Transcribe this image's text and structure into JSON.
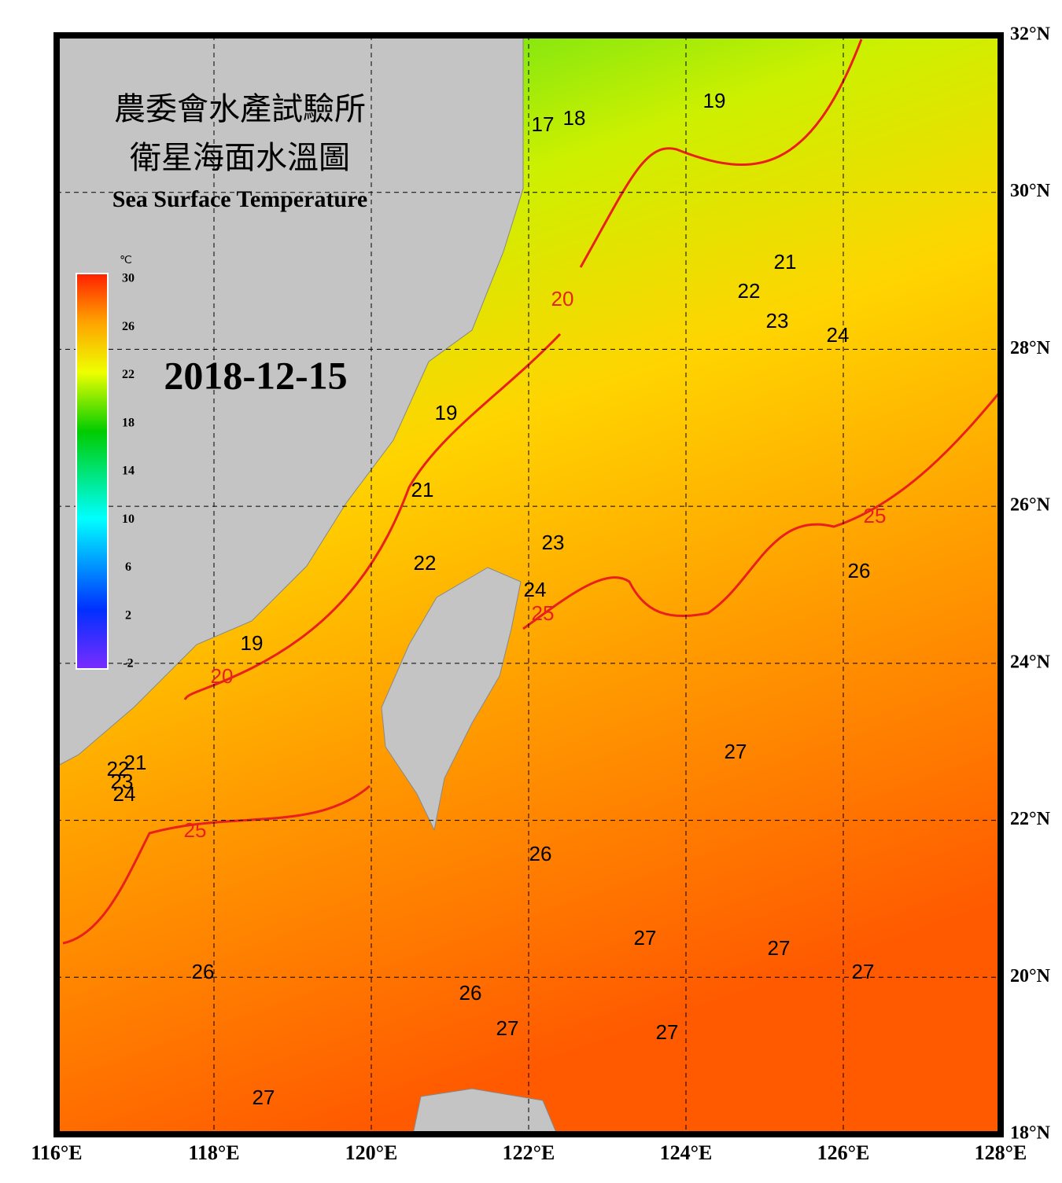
{
  "title_zh_1": "農委會水產試驗所",
  "title_zh_2": "衛星海面水溫圖",
  "title_en": "Sea Surface Temperature",
  "date": "2018-12-15",
  "colorbar": {
    "unit": "℃",
    "lim": [
      -2,
      30
    ],
    "ticks": [
      30,
      26,
      22,
      18,
      14,
      10,
      6,
      2,
      -2
    ]
  },
  "map": {
    "xlim": [
      116,
      128
    ],
    "ylim": [
      18,
      32
    ],
    "xticks": [
      {
        "value": 116,
        "label": "116°E"
      },
      {
        "value": 118,
        "label": "118°E"
      },
      {
        "value": 120,
        "label": "120°E"
      },
      {
        "value": 122,
        "label": "122°E"
      },
      {
        "value": 124,
        "label": "124°E"
      },
      {
        "value": 126,
        "label": "126°E"
      },
      {
        "value": 128,
        "label": "128°E"
      }
    ],
    "yticks": [
      {
        "value": 32,
        "label": "32°N"
      },
      {
        "value": 30,
        "label": "30°N"
      },
      {
        "value": 28,
        "label": "28°N"
      },
      {
        "value": 26,
        "label": "26°N"
      },
      {
        "value": 24,
        "label": "24°N"
      },
      {
        "value": 22,
        "label": "22°N"
      },
      {
        "value": 20,
        "label": "20°N"
      },
      {
        "value": 18,
        "label": "18°N"
      }
    ]
  },
  "isotherm_labels": [
    19,
    17,
    18,
    21,
    22,
    23,
    24,
    19,
    21,
    22,
    23,
    24,
    19,
    22,
    21,
    23,
    24,
    26,
    27,
    26,
    27,
    27,
    27,
    26,
    26,
    27,
    27,
    27
  ],
  "highlight_isotherm_labels": [
    20,
    20,
    25,
    25,
    25
  ]
}
